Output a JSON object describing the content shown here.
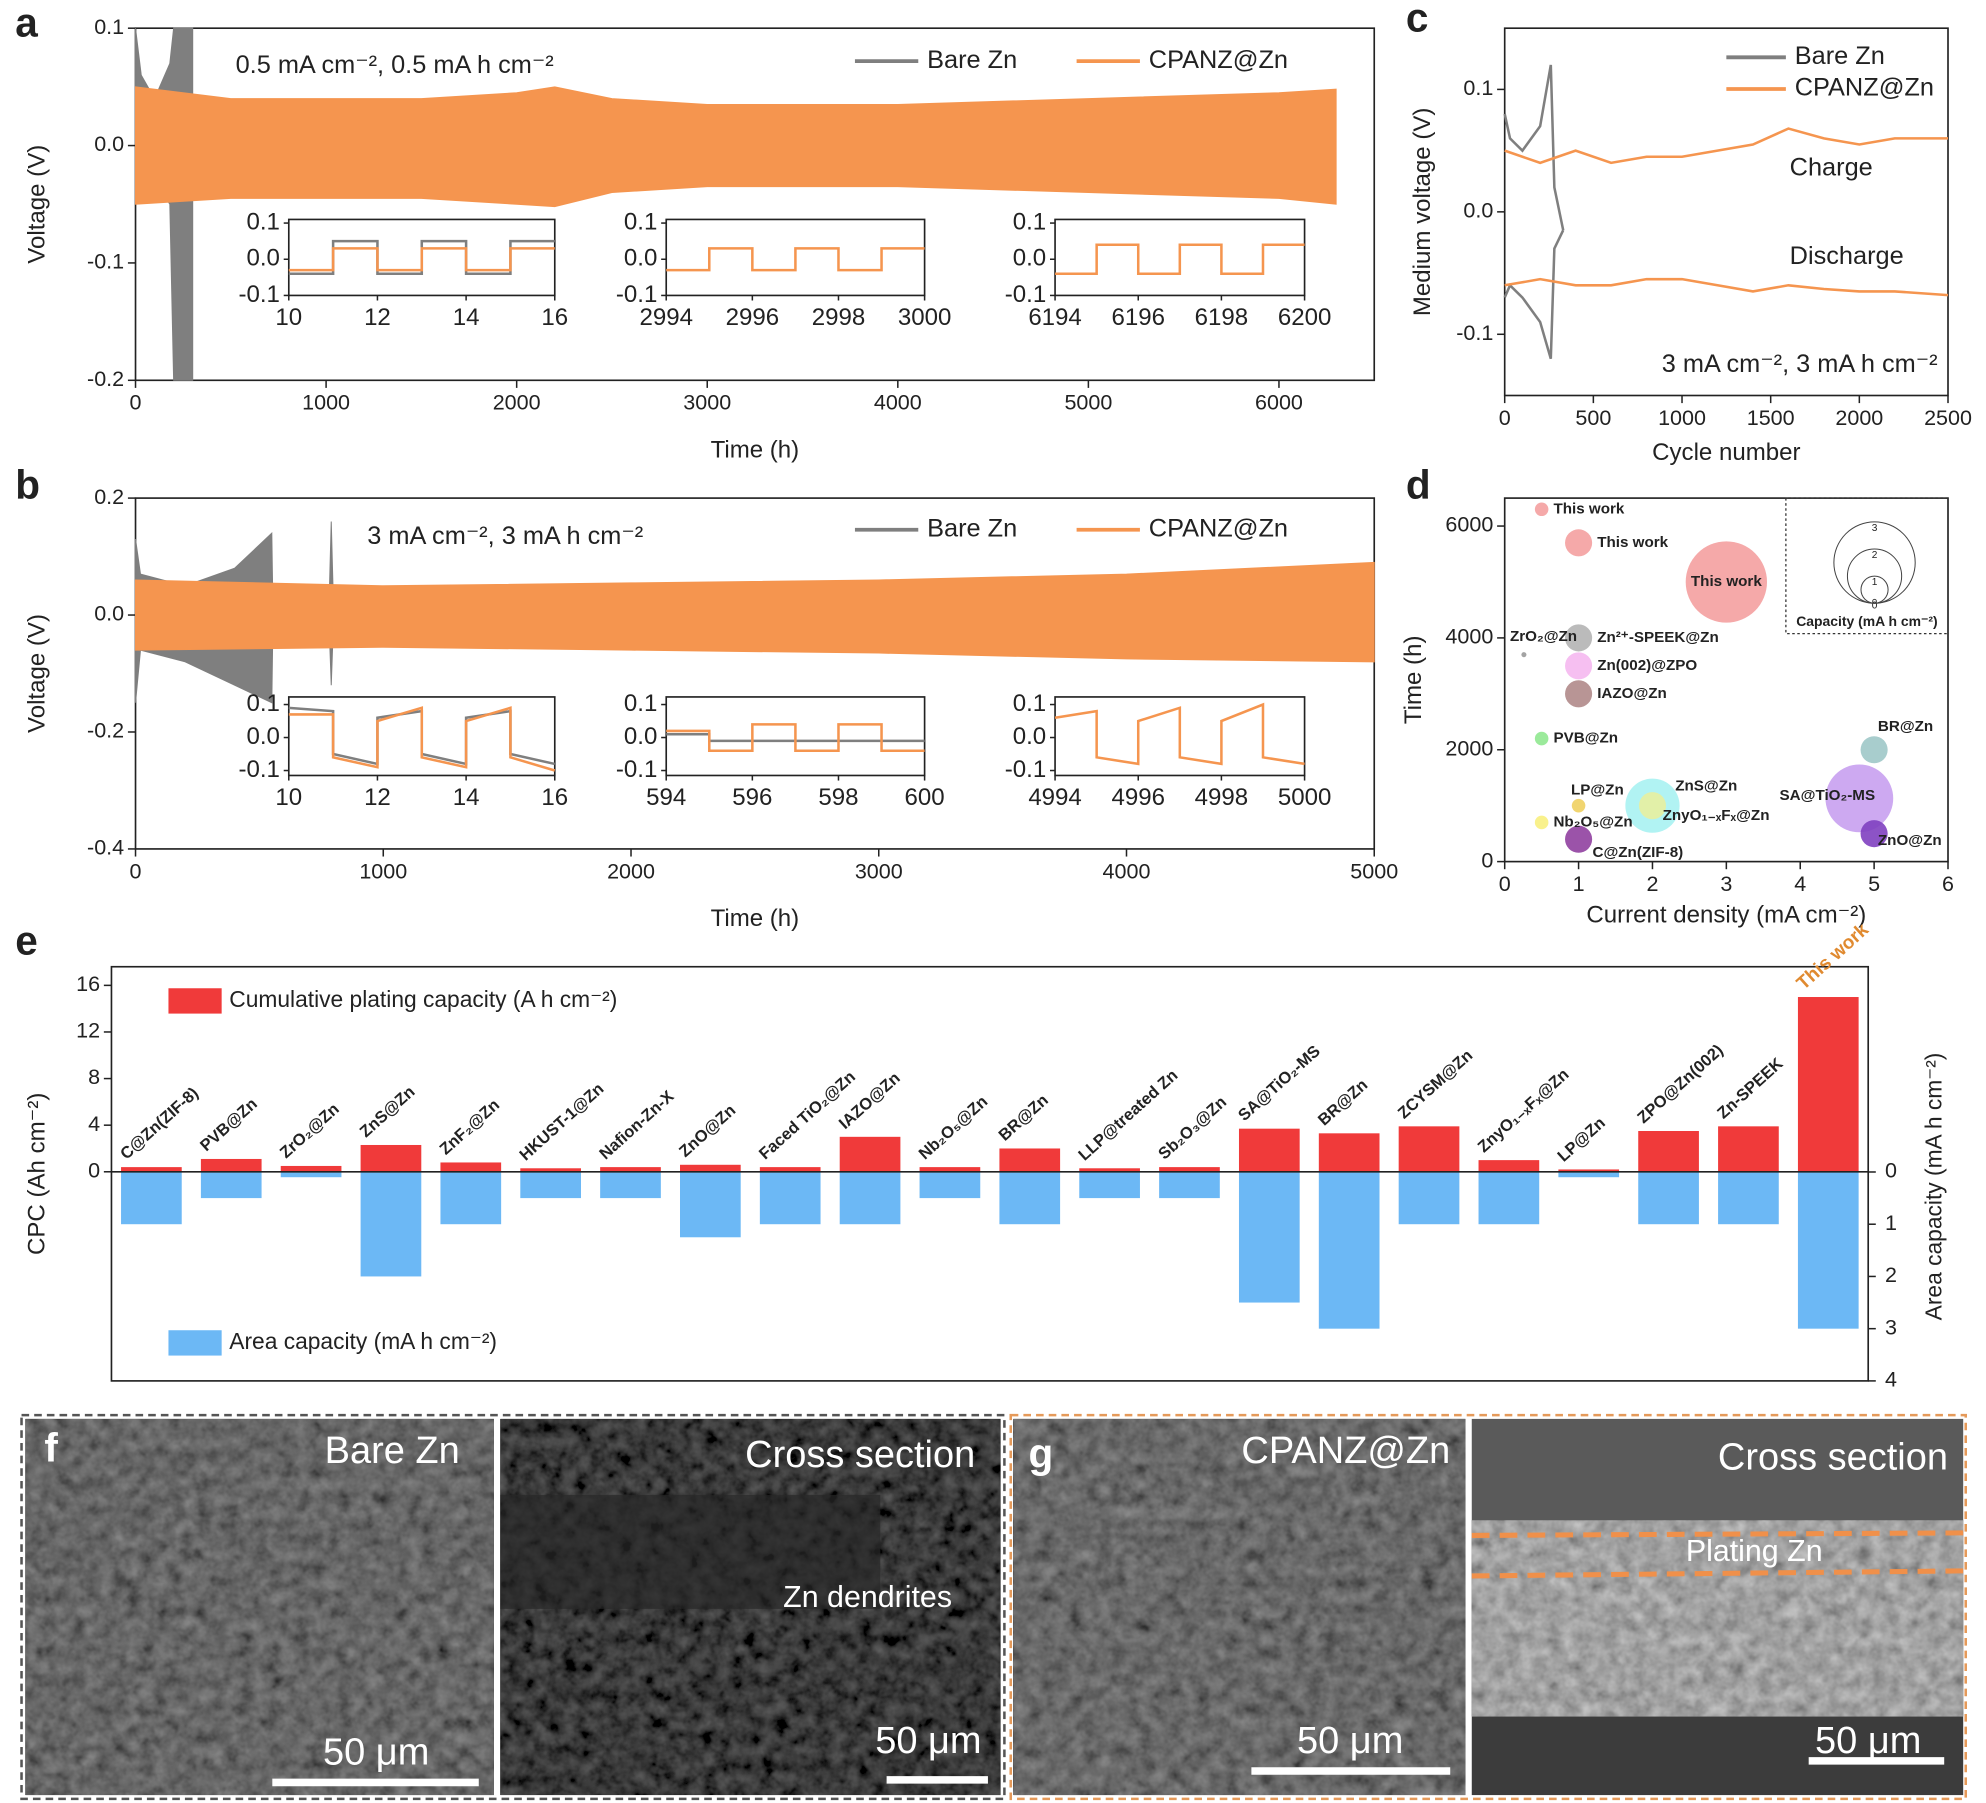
{
  "chart_data": [
    {
      "type": "area",
      "panel": "a",
      "annotations": [
        "0.5 mA cm⁻², 0.5 mA h cm⁻²"
      ],
      "x_label": "Time (h)",
      "y_label": "Voltage (V)",
      "xlim": [
        0,
        6500
      ],
      "xticks": [
        0,
        1000,
        2000,
        3000,
        4000,
        5000,
        6000
      ],
      "ylim": [
        -0.2,
        0.1
      ],
      "yticks": [
        -0.2,
        -0.1,
        {
          "value": 0,
          "label": "0.0"
        },
        0.1
      ],
      "series": [
        {
          "name": "Bare Zn",
          "color": "#7f7f7f",
          "x": [
            0,
            30,
            100,
            180,
            200,
            300
          ],
          "upper": [
            0.1,
            0.06,
            0.04,
            0.07,
            0.1,
            0.1
          ],
          "lower": [
            -0.05,
            -0.04,
            -0.03,
            -0.05,
            -0.2,
            -0.2
          ]
        },
        {
          "name": "CPANZ@Zn",
          "color": "#f5954f",
          "x": [
            0,
            500,
            1000,
            1500,
            2000,
            2200,
            2500,
            3000,
            4000,
            5000,
            6000,
            6300
          ],
          "upper": [
            0.05,
            0.04,
            0.04,
            0.04,
            0.045,
            0.05,
            0.04,
            0.035,
            0.035,
            0.04,
            0.045,
            0.048
          ],
          "lower": [
            -0.05,
            -0.045,
            -0.045,
            -0.045,
            -0.05,
            -0.052,
            -0.04,
            -0.035,
            -0.035,
            -0.04,
            -0.045,
            -0.05
          ]
        }
      ]
    },
    {
      "type": "line",
      "xlim": [
        10,
        16
      ],
      "xticks": [
        10,
        12,
        14,
        16
      ],
      "ylim": [
        -0.1,
        0.11
      ],
      "yticks": [
        -0.1,
        {
          "value": 0,
          "label": "0.0"
        },
        0.1
      ],
      "series": [
        {
          "color": "#7f7f7f",
          "x": [
            10,
            11,
            11,
            12,
            12,
            13,
            13,
            14,
            14,
            15,
            15,
            16
          ],
          "values": [
            -0.04,
            -0.04,
            0.05,
            0.05,
            -0.04,
            -0.04,
            0.05,
            0.05,
            -0.04,
            -0.04,
            0.05,
            0.05
          ]
        },
        {
          "color": "#f5954f",
          "x": [
            10,
            11,
            11,
            12,
            12,
            13,
            13,
            14,
            14,
            15,
            15,
            16
          ],
          "values": [
            -0.03,
            -0.03,
            0.03,
            0.03,
            -0.03,
            -0.03,
            0.03,
            0.03,
            -0.03,
            -0.03,
            0.03,
            0.03
          ]
        }
      ]
    },
    {
      "type": "line",
      "xlim": [
        2994,
        3000
      ],
      "xticks": [
        2994,
        2996,
        2998,
        3000
      ],
      "ylim": [
        -0.1,
        0.11
      ],
      "yticks": [
        -0.1,
        {
          "value": 0,
          "label": "0.0"
        },
        0.1
      ],
      "series": [
        {
          "color": "#f5954f",
          "x": [
            2994,
            2995,
            2995,
            2996,
            2996,
            2997,
            2997,
            2998,
            2998,
            2999,
            2999,
            3000
          ],
          "values": [
            -0.03,
            -0.03,
            0.03,
            0.03,
            -0.03,
            -0.03,
            0.03,
            0.03,
            -0.03,
            -0.03,
            0.03,
            0.03
          ]
        }
      ]
    },
    {
      "type": "line",
      "xlim": [
        6194,
        6200
      ],
      "xticks": [
        6194,
        6196,
        6198,
        6200
      ],
      "ylim": [
        -0.1,
        0.11
      ],
      "yticks": [
        -0.1,
        {
          "value": 0,
          "label": "0.0"
        },
        0.1
      ],
      "series": [
        {
          "color": "#f5954f",
          "x": [
            6194,
            6195,
            6195,
            6196,
            6196,
            6197,
            6197,
            6198,
            6198,
            6199,
            6199,
            6200
          ],
          "values": [
            -0.04,
            -0.04,
            0.04,
            0.04,
            -0.04,
            -0.04,
            0.04,
            0.04,
            -0.04,
            -0.04,
            0.04,
            0.04
          ]
        }
      ]
    },
    {
      "type": "area",
      "panel": "b",
      "annotations": [
        "3 mA cm⁻², 3 mA h cm⁻²"
      ],
      "x_label": "Time (h)",
      "y_label": "Voltage (V)",
      "xlim": [
        0,
        5000
      ],
      "xticks": [
        0,
        1000,
        2000,
        3000,
        4000,
        5000
      ],
      "ylim": [
        -0.4,
        0.2
      ],
      "yticks": [
        -0.4,
        -0.2,
        {
          "value": 0,
          "label": "0.0"
        },
        0.2
      ],
      "series": [
        {
          "name": "Bare Zn",
          "color": "#7f7f7f",
          "x": [
            0,
            20,
            200,
            400,
            550,
            555,
            780,
            790,
            800
          ],
          "upper": [
            0.13,
            0.07,
            0.05,
            0.08,
            0.14,
            0,
            0,
            0.16,
            0
          ],
          "lower": [
            -0.15,
            -0.06,
            -0.08,
            -0.12,
            -0.15,
            0,
            0,
            -0.12,
            0
          ]
        },
        {
          "name": "CPANZ@Zn",
          "color": "#f5954f",
          "x": [
            0,
            1000,
            2000,
            3000,
            4000,
            5000
          ],
          "upper": [
            0.06,
            0.05,
            0.055,
            0.06,
            0.07,
            0.09
          ],
          "lower": [
            -0.06,
            -0.055,
            -0.06,
            -0.065,
            -0.075,
            -0.08
          ]
        }
      ]
    },
    {
      "type": "line",
      "xlim": [
        10,
        16
      ],
      "xticks": [
        10,
        12,
        14,
        16
      ],
      "ylim": [
        -0.115,
        0.123
      ],
      "yticks": [
        -0.1,
        {
          "value": 0,
          "label": "0.0"
        },
        0.1
      ],
      "series": [
        {
          "color": "#7f7f7f",
          "x": [
            10,
            11,
            11,
            12,
            12,
            13,
            13,
            14,
            14,
            15,
            15,
            16
          ],
          "values": [
            0.09,
            0.08,
            -0.05,
            -0.08,
            0.06,
            0.08,
            -0.05,
            -0.08,
            0.06,
            0.08,
            -0.05,
            -0.08
          ]
        },
        {
          "color": "#f5954f",
          "x": [
            10,
            11,
            11,
            12,
            12,
            13,
            13,
            14,
            14,
            15,
            15,
            16
          ],
          "values": [
            0.07,
            0.07,
            -0.06,
            -0.09,
            0.05,
            0.09,
            -0.06,
            -0.09,
            0.05,
            0.09,
            -0.06,
            -0.1
          ]
        }
      ]
    },
    {
      "type": "line",
      "xlim": [
        594,
        600
      ],
      "xticks": [
        594,
        596,
        598,
        600
      ],
      "ylim": [
        -0.115,
        0.123
      ],
      "yticks": [
        -0.1,
        {
          "value": 0,
          "label": "0.0"
        },
        0.1
      ],
      "series": [
        {
          "color": "#7f7f7f",
          "x": [
            594,
            595,
            595,
            600
          ],
          "values": [
            0.01,
            0.01,
            -0.01,
            -0.01
          ]
        },
        {
          "color": "#f5954f",
          "x": [
            594,
            595,
            595,
            596,
            596,
            597,
            597,
            598,
            598,
            599,
            599,
            600
          ],
          "values": [
            0.02,
            0.02,
            -0.04,
            -0.04,
            0.04,
            0.04,
            -0.04,
            -0.04,
            0.04,
            0.04,
            -0.04,
            -0.04
          ]
        }
      ]
    },
    {
      "type": "line",
      "xlim": [
        4994,
        5000
      ],
      "xticks": [
        4994,
        4996,
        4998,
        5000
      ],
      "ylim": [
        -0.115,
        0.123
      ],
      "yticks": [
        -0.1,
        {
          "value": 0,
          "label": "0.0"
        },
        0.1
      ],
      "series": [
        {
          "color": "#f5954f",
          "x": [
            4994,
            4995,
            4995,
            4996,
            4996,
            4997,
            4997,
            4998,
            4998,
            4999,
            4999,
            5000
          ],
          "values": [
            0.06,
            0.08,
            -0.06,
            -0.08,
            0.05,
            0.09,
            -0.06,
            -0.08,
            0.05,
            0.1,
            -0.06,
            -0.08
          ]
        }
      ]
    },
    {
      "type": "line",
      "panel": "c",
      "annotations": [
        "Charge",
        "Discharge",
        "3 mA cm⁻², 3 mA h cm⁻²"
      ],
      "x_label": "Cycle number",
      "y_label": "Medium voltage (V)",
      "xlim": [
        0,
        2500
      ],
      "xticks": [
        0,
        500,
        1000,
        1500,
        2000,
        2500
      ],
      "ylim": [
        -0.15,
        0.15
      ],
      "yticks": [
        -0.1,
        {
          "value": 0,
          "label": "0.0"
        },
        0.1
      ],
      "series": [
        {
          "name": "Bare Zn",
          "color": "#7f7f7f",
          "x": [
            0,
            30,
            100,
            200,
            260,
            280,
            330
          ],
          "charge": [
            0.08,
            0.06,
            0.05,
            0.07,
            0.12,
            0.02,
            -0.015
          ],
          "discharge": [
            -0.07,
            -0.06,
            -0.07,
            -0.09,
            -0.12,
            -0.03,
            -0.015
          ]
        },
        {
          "name": "CPANZ@Zn",
          "color": "#f5954f",
          "x": [
            0,
            200,
            400,
            600,
            800,
            1000,
            1200,
            1400,
            1600,
            1800,
            2000,
            2200,
            2500
          ],
          "charge": [
            0.05,
            0.04,
            0.05,
            0.04,
            0.045,
            0.045,
            0.05,
            0.055,
            0.068,
            0.06,
            0.055,
            0.06,
            0.06
          ],
          "discharge": [
            -0.06,
            -0.055,
            -0.06,
            -0.06,
            -0.055,
            -0.055,
            -0.06,
            -0.065,
            -0.06,
            -0.063,
            -0.065,
            -0.065,
            -0.068
          ]
        }
      ]
    },
    {
      "type": "scatter",
      "panel": "d",
      "x_label": "Current density (mA cm⁻²)",
      "y_label": "Time (h)",
      "xlim": [
        0,
        6
      ],
      "xticks": [
        0,
        1,
        2,
        3,
        4,
        5,
        6
      ],
      "ylim": [
        0,
        6500
      ],
      "yticks": [
        0,
        2000,
        4000,
        6000
      ],
      "size_legend": {
        "title": "Capacity (mA h cm⁻²)",
        "ticks": [
          0,
          1,
          2,
          3
        ]
      },
      "points": [
        {
          "name": "This work",
          "x": 0.5,
          "y": 6300,
          "size": 0.5,
          "color": "#f4a0a0"
        },
        {
          "name": "This work",
          "x": 1,
          "y": 5700,
          "size": 1,
          "color": "#f4a0a0"
        },
        {
          "name": "This work",
          "x": 3,
          "y": 5000,
          "size": 3,
          "color": "#f4a0a0"
        },
        {
          "name": "ZrO₂@Zn",
          "x": 0.26,
          "y": 3700,
          "size": 0.1,
          "color": "#999999"
        },
        {
          "name": "Zn²⁺-SPEEK@Zn",
          "x": 1,
          "y": 4000,
          "size": 1,
          "color": "#b4b4b4"
        },
        {
          "name": "Zn(002)@ZPO",
          "x": 1,
          "y": 3500,
          "size": 1,
          "color": "#f5b8f0"
        },
        {
          "name": "IAZO@Zn",
          "x": 1,
          "y": 3000,
          "size": 1,
          "color": "#b08a8a"
        },
        {
          "name": "PVB@Zn",
          "x": 0.5,
          "y": 2200,
          "size": 0.5,
          "color": "#90e890"
        },
        {
          "name": "BR@Zn",
          "x": 5,
          "y": 2000,
          "size": 1,
          "color": "#9fc8c8"
        },
        {
          "name": "LP@Zn",
          "x": 1,
          "y": 1000,
          "size": 0.5,
          "color": "#f0d060"
        },
        {
          "name": "ZnS@Zn",
          "x": 2,
          "y": 1000,
          "size": 2,
          "color": "#a8f2f2"
        },
        {
          "name": "ZnyO₁₋ₓFₓ@Zn",
          "x": 2,
          "y": 1000,
          "size": 1,
          "color": "#e8f0a0"
        },
        {
          "name": "SA@TiO₂-MS",
          "x": 4.8,
          "y": 1130,
          "size": 2.5,
          "color": "#c8a0f0"
        },
        {
          "name": "Nb₂O₅@Zn",
          "x": 0.5,
          "y": 700,
          "size": 0.5,
          "color": "#f8f080"
        },
        {
          "name": "C@Zn(ZIF-8)",
          "x": 1,
          "y": 400,
          "size": 1,
          "color": "#9040a0"
        },
        {
          "name": "ZnO@Zn",
          "x": 5,
          "y": 500,
          "size": 1,
          "color": "#8040c0"
        }
      ]
    },
    {
      "type": "bar",
      "panel": "e",
      "y_label": "CPC (Ah cm⁻²)",
      "y2_label": "Area capacity (mA h cm⁻²)",
      "ylim": [
        -17.95,
        17.6
      ],
      "yticks": [
        0,
        4,
        8,
        12,
        16
      ],
      "y2lim": [
        4,
        -3.93
      ],
      "y2ticks": [
        0,
        1,
        2,
        3,
        4
      ],
      "categories": [
        "C@Zn(ZIF-8)",
        "PVB@Zn",
        "ZrO₂@Zn",
        "ZnS@Zn",
        "ZnF₂@Zn",
        "HKUST-1@Zn",
        "Nafion-Zn-X",
        "ZnO@Zn",
        "Faced TiO₂@Zn",
        "IAZO@Zn",
        "Nb₂O₅@Zn",
        "BR@Zn",
        "LLP@treated Zn",
        "Sb₂O₃@Zn",
        "SA@TiO₂-MS",
        "BR@Zn",
        "ZCYSM@Zn",
        "ZnyO₁₋ₓFₓ@Zn",
        "LP@Zn",
        "ZPO@Zn(002)",
        "Zn-SPEEK",
        "This work"
      ],
      "highlight_index": 21,
      "highlight_color": "#e08a30",
      "series": [
        {
          "name": "Cumulative plating capacity (A h cm⁻²)",
          "color": "#f03a3a",
          "values": [
            0.4,
            1.1,
            0.5,
            2.3,
            0.8,
            0.3,
            0.4,
            0.6,
            0.4,
            3.0,
            0.4,
            2.0,
            0.3,
            0.4,
            3.7,
            3.3,
            3.9,
            1.0,
            0.2,
            3.5,
            3.9,
            15.0
          ]
        },
        {
          "name": "Area capacity (mA h cm⁻²)",
          "color": "#6cb8f5",
          "axis": "y2",
          "values": [
            1,
            0.5,
            0.1,
            2,
            1,
            0.5,
            0.5,
            1.25,
            1,
            1,
            0.5,
            1,
            0.5,
            0.5,
            2.5,
            3,
            1,
            1,
            0.1,
            1,
            1,
            3
          ]
        }
      ]
    }
  ],
  "micrographs": [
    {
      "panel": "f",
      "images": [
        {
          "title": "Bare Zn",
          "scale_bar": "50 μm"
        },
        {
          "title": "Cross section",
          "note": "Zn dendrites",
          "scale_bar": "50 μm"
        }
      ]
    },
    {
      "panel": "g",
      "images": [
        {
          "title": "CPANZ@Zn",
          "scale_bar": "50 μm"
        },
        {
          "title": "Cross section",
          "note": "Plating Zn",
          "scale_bar": "50 μm"
        }
      ]
    }
  ]
}
